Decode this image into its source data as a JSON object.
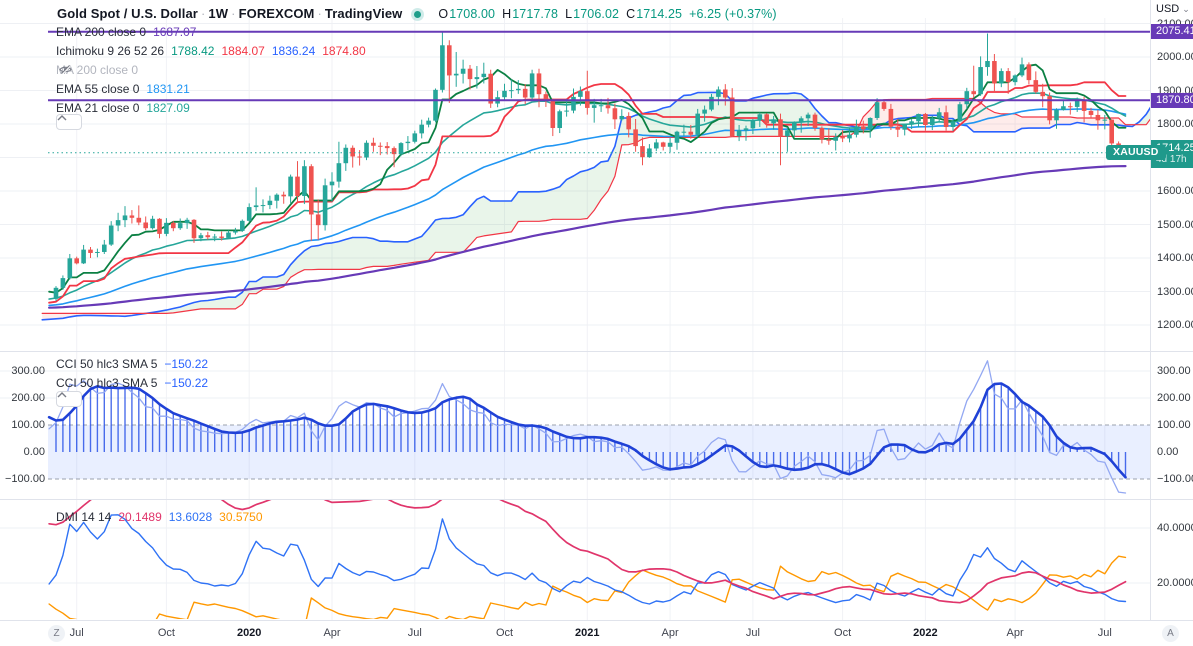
{
  "header": {
    "title": "Gold Spot / U.S. Dollar",
    "interval": "1W",
    "exchange": "FOREXCOM",
    "brand": "TradingView",
    "separator": "·",
    "ohlc": {
      "o_label": "O",
      "o": "1708.00",
      "h_label": "H",
      "h": "1717.78",
      "l_label": "L",
      "l": "1706.02",
      "c_label": "C",
      "c": "1714.25",
      "change": "+6.25 (+0.37%)"
    }
  },
  "legend": {
    "main": [
      {
        "id": "ema200",
        "label": "EMA 200 close 0",
        "hidden": false,
        "values": [
          {
            "text": "1687.07",
            "color": "#673ab7"
          }
        ]
      },
      {
        "id": "ichimoku",
        "label": "Ichimoku 9 26 52 26",
        "hidden": false,
        "values": [
          {
            "text": "1788.42",
            "color": "#089981"
          },
          {
            "text": "1884.07",
            "color": "#f23645"
          },
          {
            "text": "1836.24",
            "color": "#2962ff"
          },
          {
            "text": "1874.80",
            "color": "#f23645"
          }
        ]
      },
      {
        "id": "ma200",
        "label": "MA 200 close 0",
        "hidden": true,
        "values": []
      },
      {
        "id": "ema55",
        "label": "EMA 55 close 0",
        "hidden": false,
        "values": [
          {
            "text": "1831.21",
            "color": "#2196f3"
          }
        ]
      },
      {
        "id": "ema21",
        "label": "EMA 21 close 0",
        "hidden": false,
        "values": [
          {
            "text": "1827.09",
            "color": "#26a69a"
          }
        ]
      }
    ],
    "cci": [
      {
        "label": "CCI 50 hlc3 SMA 5",
        "values": [
          {
            "text": "−150.22",
            "color": "#2962ff"
          }
        ]
      },
      {
        "label": "CCI 50 hlc3 SMA 5",
        "values": [
          {
            "text": "−150.22",
            "color": "#2962ff"
          }
        ]
      }
    ],
    "dmi": {
      "label": "DMI 14 14",
      "values": [
        {
          "text": "20.1489",
          "color": "#e0356b"
        },
        {
          "text": "13.6028",
          "color": "#2f72f5"
        },
        {
          "text": "30.5750",
          "color": "#ff9800"
        }
      ]
    }
  },
  "price_axis": {
    "currency": "USD",
    "main_ticks": [
      "2100.00",
      "2000.00",
      "1900.00",
      "1800.00",
      "1700.00",
      "1600.00",
      "1500.00",
      "1400.00",
      "1300.00",
      "1200.00"
    ],
    "cci_ticks": [
      {
        "text": "300.00",
        "value": 300
      },
      {
        "text": "200.00",
        "value": 200
      },
      {
        "text": "100.00",
        "value": 100
      },
      {
        "text": "0.00",
        "value": 0
      },
      {
        "text": "−100.00",
        "value": -100
      }
    ],
    "dmi_ticks": [
      {
        "text": "40.0000",
        "value": 40
      },
      {
        "text": "20.0000",
        "value": 20
      }
    ],
    "badges": [
      {
        "text": "2075.41",
        "price": 2075.41,
        "color": "#673ab7"
      },
      {
        "text": "1870.80",
        "price": 1870.8,
        "color": "#673ab7"
      }
    ],
    "price_badge": {
      "text": "1714.25",
      "countdown": "4d 17h",
      "color": "#1f998b"
    },
    "symbol_chip": "XAUUSD"
  },
  "time_axis": {
    "left_button": "Z",
    "right_button": "A",
    "labels": [
      {
        "text": "Jul",
        "bar": 3,
        "bold": false
      },
      {
        "text": "Oct",
        "bar": 16,
        "bold": false
      },
      {
        "text": "2020",
        "bar": 28,
        "bold": true
      },
      {
        "text": "Apr",
        "bar": 40,
        "bold": false
      },
      {
        "text": "Jul",
        "bar": 52,
        "bold": false
      },
      {
        "text": "Oct",
        "bar": 65,
        "bold": false
      },
      {
        "text": "2021",
        "bar": 77,
        "bold": true
      },
      {
        "text": "Apr",
        "bar": 89,
        "bold": false
      },
      {
        "text": "Jul",
        "bar": 101,
        "bold": false
      },
      {
        "text": "Oct",
        "bar": 114,
        "bold": false
      },
      {
        "text": "2022",
        "bar": 126,
        "bold": true
      },
      {
        "text": "Apr",
        "bar": 139,
        "bold": false
      },
      {
        "text": "Jul",
        "bar": 152,
        "bold": false
      }
    ]
  },
  "chart_data": {
    "type": "candlestick",
    "symbol": "XAUUSD",
    "timeframe": "1W",
    "last_price": 1714.25,
    "horizontal_lines": [
      2075.41,
      1870.8
    ],
    "colors": {
      "up": "#26a69a",
      "down": "#ef5350",
      "ema21": "#26a69a",
      "ema55": "#2196f3",
      "ema200": "#673ab7",
      "ichimoku_conversion": "#0b8043",
      "ichimoku_base": "#f23645",
      "ichimoku_lead1": "#2962ff",
      "ichimoku_lead2": "#f23645",
      "cloud_bull": "rgba(76,175,80,0.12)",
      "cloud_bear": "rgba(244,67,54,0.10)",
      "cci_line": "#1f41d6",
      "cci_raw": "#93a8f2",
      "cci_band": "rgba(41,98,255,0.10)",
      "adx": "#e0356b",
      "plus_di": "#2f72f5",
      "minus_di": "#ff9800",
      "drawing_line": "#673ab7",
      "last_price_line": "#26a69a"
    },
    "indicator_params": {
      "ema_periods": [
        21,
        55,
        200
      ],
      "ichimoku": [
        9,
        26,
        52,
        26
      ],
      "cci": [
        50,
        5
      ],
      "dmi": [
        14,
        14
      ]
    },
    "panes": [
      {
        "name": "price",
        "ylim": [
          1125,
          2095
        ]
      },
      {
        "name": "CCI 50 hlc3 SMA 5",
        "ylim": [
          -215,
          370
        ],
        "band": [
          -100,
          100
        ],
        "last": -150.22
      },
      {
        "name": "DMI 14 14",
        "ylim": [
          6,
          50
        ],
        "adx": 20.1489,
        "plus_di": 13.6028,
        "minus_di": 30.575
      }
    ],
    "warmup_closes": [
      1252,
      1258,
      1266,
      1273,
      1281,
      1288,
      1279,
      1271,
      1263,
      1255,
      1246,
      1238,
      1230,
      1221,
      1213,
      1205,
      1197,
      1189,
      1181,
      1192,
      1200,
      1207,
      1199,
      1205,
      1212,
      1218,
      1224,
      1230,
      1236,
      1242,
      1247,
      1241,
      1235,
      1229,
      1234,
      1240,
      1246,
      1252,
      1258,
      1264,
      1270,
      1277,
      1284,
      1291,
      1297,
      1303,
      1309,
      1315,
      1308,
      1300,
      1292,
      1285
    ],
    "candles_ohlc": [
      [
        1278,
        1316,
        1272,
        1311
      ],
      [
        1311,
        1348,
        1305,
        1340
      ],
      [
        1340,
        1412,
        1336,
        1399
      ],
      [
        1399,
        1404,
        1381,
        1384
      ],
      [
        1384,
        1439,
        1382,
        1425
      ],
      [
        1425,
        1433,
        1400,
        1415
      ],
      [
        1415,
        1428,
        1402,
        1418
      ],
      [
        1418,
        1454,
        1412,
        1440
      ],
      [
        1440,
        1510,
        1436,
        1497
      ],
      [
        1497,
        1535,
        1480,
        1513
      ],
      [
        1513,
        1555,
        1492,
        1527
      ],
      [
        1527,
        1543,
        1503,
        1520
      ],
      [
        1520,
        1557,
        1498,
        1506
      ],
      [
        1506,
        1524,
        1483,
        1489
      ],
      [
        1489,
        1526,
        1485,
        1517
      ],
      [
        1517,
        1519,
        1459,
        1472
      ],
      [
        1472,
        1519,
        1465,
        1505
      ],
      [
        1505,
        1510,
        1480,
        1489
      ],
      [
        1489,
        1518,
        1484,
        1504
      ],
      [
        1504,
        1520,
        1487,
        1514
      ],
      [
        1514,
        1516,
        1445,
        1459
      ],
      [
        1459,
        1475,
        1450,
        1468
      ],
      [
        1468,
        1478,
        1455,
        1462
      ],
      [
        1462,
        1472,
        1450,
        1464
      ],
      [
        1464,
        1479,
        1452,
        1460
      ],
      [
        1460,
        1482,
        1458,
        1476
      ],
      [
        1476,
        1490,
        1470,
        1481
      ],
      [
        1481,
        1515,
        1478,
        1511
      ],
      [
        1511,
        1563,
        1508,
        1552
      ],
      [
        1552,
        1611,
        1541,
        1557
      ],
      [
        1557,
        1575,
        1536,
        1558
      ],
      [
        1558,
        1586,
        1546,
        1571
      ],
      [
        1571,
        1593,
        1548,
        1589
      ],
      [
        1589,
        1598,
        1562,
        1584
      ],
      [
        1584,
        1649,
        1564,
        1643
      ],
      [
        1643,
        1689,
        1563,
        1585
      ],
      [
        1585,
        1692,
        1561,
        1674
      ],
      [
        1674,
        1680,
        1451,
        1530
      ],
      [
        1530,
        1575,
        1454,
        1498
      ],
      [
        1498,
        1637,
        1482,
        1617
      ],
      [
        1617,
        1656,
        1568,
        1628
      ],
      [
        1628,
        1747,
        1610,
        1683
      ],
      [
        1683,
        1739,
        1660,
        1729
      ],
      [
        1729,
        1736,
        1670,
        1703
      ],
      [
        1703,
        1722,
        1676,
        1700
      ],
      [
        1700,
        1751,
        1692,
        1744
      ],
      [
        1744,
        1759,
        1717,
        1735
      ],
      [
        1735,
        1745,
        1707,
        1734
      ],
      [
        1734,
        1746,
        1709,
        1728
      ],
      [
        1728,
        1733,
        1671,
        1710
      ],
      [
        1710,
        1746,
        1704,
        1743
      ],
      [
        1743,
        1764,
        1722,
        1747
      ],
      [
        1747,
        1780,
        1742,
        1772
      ],
      [
        1772,
        1813,
        1757,
        1798
      ],
      [
        1798,
        1819,
        1790,
        1810
      ],
      [
        1810,
        1906,
        1805,
        1902
      ],
      [
        1902,
        2075,
        1894,
        2035
      ],
      [
        2035,
        2050,
        1863,
        1945
      ],
      [
        1945,
        2015,
        1911,
        1950
      ],
      [
        1950,
        1992,
        1921,
        1965
      ],
      [
        1965,
        1976,
        1903,
        1934
      ],
      [
        1934,
        1973,
        1906,
        1940
      ],
      [
        1940,
        1983,
        1921,
        1950
      ],
      [
        1950,
        1962,
        1848,
        1861
      ],
      [
        1861,
        1899,
        1850,
        1880
      ],
      [
        1880,
        1920,
        1873,
        1899
      ],
      [
        1899,
        1933,
        1877,
        1901
      ],
      [
        1901,
        1931,
        1890,
        1905
      ],
      [
        1905,
        1919,
        1859,
        1879
      ],
      [
        1879,
        1962,
        1871,
        1951
      ],
      [
        1951,
        1965,
        1850,
        1889
      ],
      [
        1889,
        1897,
        1851,
        1870
      ],
      [
        1870,
        1876,
        1764,
        1788
      ],
      [
        1788,
        1843,
        1773,
        1838
      ],
      [
        1838,
        1875,
        1822,
        1840
      ],
      [
        1840,
        1906,
        1832,
        1881
      ],
      [
        1881,
        1912,
        1855,
        1898
      ],
      [
        1898,
        1959,
        1828,
        1848
      ],
      [
        1848,
        1875,
        1804,
        1856
      ],
      [
        1856,
        1875,
        1836,
        1856
      ],
      [
        1856,
        1878,
        1831,
        1847
      ],
      [
        1847,
        1861,
        1785,
        1814
      ],
      [
        1814,
        1844,
        1810,
        1824
      ],
      [
        1824,
        1835,
        1760,
        1784
      ],
      [
        1784,
        1815,
        1717,
        1734
      ],
      [
        1734,
        1760,
        1677,
        1701
      ],
      [
        1701,
        1740,
        1699,
        1727
      ],
      [
        1727,
        1755,
        1719,
        1745
      ],
      [
        1745,
        1747,
        1721,
        1732
      ],
      [
        1732,
        1758,
        1716,
        1744
      ],
      [
        1744,
        1780,
        1723,
        1777
      ],
      [
        1777,
        1798,
        1764,
        1777
      ],
      [
        1777,
        1797,
        1756,
        1768
      ],
      [
        1768,
        1845,
        1761,
        1831
      ],
      [
        1831,
        1855,
        1807,
        1843
      ],
      [
        1843,
        1890,
        1838,
        1881
      ],
      [
        1881,
        1912,
        1856,
        1903
      ],
      [
        1903,
        1919,
        1855,
        1879
      ],
      [
        1879,
        1907,
        1761,
        1764
      ],
      [
        1764,
        1797,
        1749,
        1781
      ],
      [
        1781,
        1795,
        1750,
        1787
      ],
      [
        1787,
        1815,
        1770,
        1812
      ],
      [
        1812,
        1834,
        1791,
        1829
      ],
      [
        1829,
        1832,
        1789,
        1802
      ],
      [
        1802,
        1824,
        1783,
        1814
      ],
      [
        1814,
        1831,
        1677,
        1763
      ],
      [
        1763,
        1790,
        1717,
        1781
      ],
      [
        1781,
        1808,
        1762,
        1805
      ],
      [
        1805,
        1823,
        1774,
        1817
      ],
      [
        1817,
        1834,
        1794,
        1828
      ],
      [
        1828,
        1834,
        1780,
        1788
      ],
      [
        1788,
        1793,
        1742,
        1754
      ],
      [
        1754,
        1787,
        1738,
        1750
      ],
      [
        1750,
        1772,
        1721,
        1761
      ],
      [
        1761,
        1782,
        1746,
        1757
      ],
      [
        1757,
        1790,
        1745,
        1768
      ],
      [
        1768,
        1813,
        1760,
        1793
      ],
      [
        1793,
        1810,
        1772,
        1784
      ],
      [
        1784,
        1820,
        1759,
        1818
      ],
      [
        1818,
        1877,
        1812,
        1865
      ],
      [
        1865,
        1872,
        1839,
        1845
      ],
      [
        1845,
        1860,
        1782,
        1792
      ],
      [
        1792,
        1815,
        1761,
        1783
      ],
      [
        1783,
        1800,
        1766,
        1798
      ],
      [
        1798,
        1815,
        1785,
        1808
      ],
      [
        1808,
        1831,
        1790,
        1830
      ],
      [
        1830,
        1833,
        1780,
        1797
      ],
      [
        1797,
        1825,
        1782,
        1817
      ],
      [
        1817,
        1848,
        1805,
        1835
      ],
      [
        1835,
        1855,
        1780,
        1791
      ],
      [
        1791,
        1815,
        1779,
        1808
      ],
      [
        1808,
        1866,
        1806,
        1859
      ],
      [
        1859,
        1908,
        1845,
        1898
      ],
      [
        1898,
        1974,
        1878,
        1889
      ],
      [
        1889,
        2002,
        1884,
        1970
      ],
      [
        1970,
        2070,
        1944,
        1988
      ],
      [
        1988,
        2009,
        1895,
        1921
      ],
      [
        1921,
        1966,
        1910,
        1958
      ],
      [
        1958,
        1967,
        1890,
        1925
      ],
      [
        1925,
        1948,
        1915,
        1945
      ],
      [
        1945,
        1998,
        1940,
        1978
      ],
      [
        1978,
        1984,
        1919,
        1931
      ],
      [
        1931,
        1957,
        1891,
        1896
      ],
      [
        1896,
        1920,
        1850,
        1883
      ],
      [
        1883,
        1894,
        1799,
        1811
      ],
      [
        1811,
        1847,
        1786,
        1842
      ],
      [
        1842,
        1869,
        1840,
        1853
      ],
      [
        1853,
        1864,
        1828,
        1851
      ],
      [
        1851,
        1879,
        1836,
        1871
      ],
      [
        1871,
        1881,
        1805,
        1839
      ],
      [
        1839,
        1848,
        1816,
        1827
      ],
      [
        1827,
        1842,
        1783,
        1811
      ],
      [
        1811,
        1827,
        1784,
        1813
      ],
      [
        1813,
        1814,
        1732,
        1742
      ],
      [
        1742,
        1748,
        1697,
        1708
      ],
      [
        1708,
        1718,
        1706,
        1714
      ]
    ]
  }
}
